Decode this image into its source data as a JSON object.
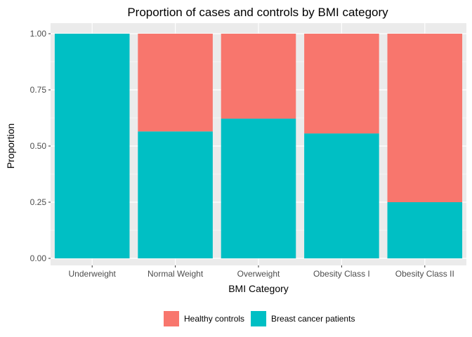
{
  "chart_data": {
    "type": "bar",
    "stacked": true,
    "title": "Proportion of cases and controls by BMI category",
    "xlabel": "BMI Category",
    "ylabel": "Proportion",
    "ylim": [
      0,
      1
    ],
    "yticks": [
      "0.00",
      "0.25",
      "0.50",
      "0.75",
      "1.00"
    ],
    "categories": [
      "Underweight",
      "Normal Weight",
      "Overweight",
      "Obesity Class I",
      "Obesity Class II"
    ],
    "series": [
      {
        "name": "Breast cancer patients",
        "color": "#00BFC4",
        "values": [
          1.0,
          0.565,
          0.622,
          0.556,
          0.25
        ]
      },
      {
        "name": "Healthy controls",
        "color": "#F8766D",
        "values": [
          0.0,
          0.435,
          0.378,
          0.444,
          0.75
        ]
      }
    ],
    "legend": {
      "position": "bottom",
      "order": [
        "Healthy controls",
        "Breast cancer patients"
      ]
    },
    "grid": true,
    "panel_background": "#EBEBEB"
  }
}
